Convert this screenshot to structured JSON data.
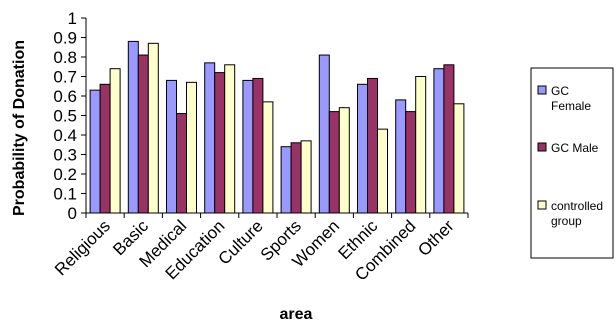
{
  "chart_data": {
    "type": "bar",
    "title": "",
    "xlabel": "area",
    "ylabel": "Probability of Donation",
    "ylim": [
      0,
      1
    ],
    "yticks": [
      "0",
      "0.1",
      "0.2",
      "0.3",
      "0.4",
      "0.5",
      "0.6",
      "0.7",
      "0.8",
      "0.9",
      "1"
    ],
    "grid": false,
    "legend_position": "right",
    "categories": [
      "Religious",
      "Basic",
      "Medical",
      "Education",
      "Culture",
      "Sports",
      "Women",
      "Ethnic",
      "Combined",
      "Other"
    ],
    "series": [
      {
        "name": "GC Female",
        "legend_lines": [
          "GC",
          "Female"
        ],
        "color": "#9999ff",
        "values": [
          0.63,
          0.88,
          0.68,
          0.77,
          0.68,
          0.34,
          0.81,
          0.66,
          0.58,
          0.74
        ]
      },
      {
        "name": "GC Male",
        "legend_lines": [
          "GC Male"
        ],
        "color": "#993366",
        "values": [
          0.66,
          0.81,
          0.51,
          0.72,
          0.69,
          0.36,
          0.52,
          0.69,
          0.52,
          0.76
        ]
      },
      {
        "name": "controlled group",
        "legend_lines": [
          "controlled",
          "group"
        ],
        "color": "#ffffcc",
        "values": [
          0.74,
          0.87,
          0.67,
          0.76,
          0.57,
          0.37,
          0.54,
          0.43,
          0.7,
          0.56
        ]
      }
    ]
  }
}
